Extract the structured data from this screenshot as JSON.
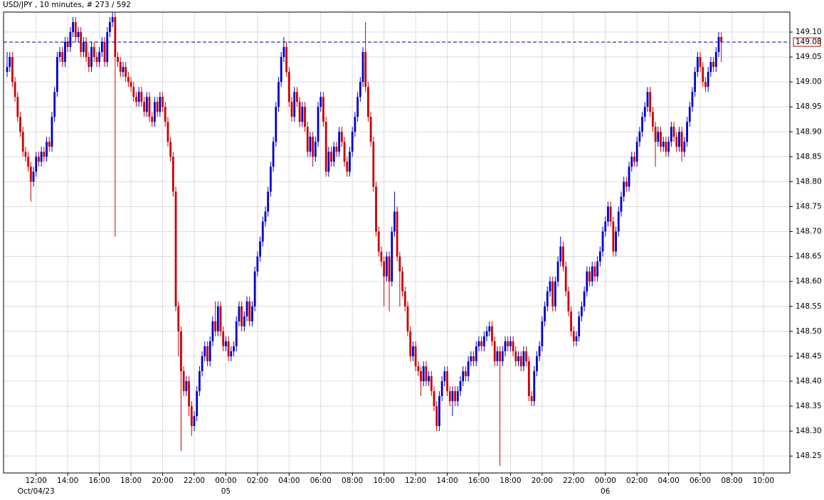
{
  "chart_data": {
    "type": "candlestick",
    "title": "USD/JPY , 10 minutes, # 273 / 592",
    "up_color": "#0000cc",
    "down_color": "#cc0000",
    "grid": true,
    "last_price": 149.08,
    "ylim": [
      148.216,
      149.14
    ],
    "yticks": [
      148.25,
      {
        "value": 148.3,
        "label": "148.30"
      },
      148.35,
      {
        "value": 148.4,
        "label": "148.40"
      },
      148.45,
      {
        "value": 148.5,
        "label": "148.50"
      },
      148.55,
      {
        "value": 148.6,
        "label": "148.60"
      },
      148.65,
      {
        "value": 148.7,
        "label": "148.70"
      },
      148.75,
      {
        "value": 148.8,
        "label": "148.80"
      },
      148.85,
      {
        "value": 148.9,
        "label": "148.90"
      },
      148.95,
      {
        "value": 149.0,
        "label": "149.00"
      },
      149.05,
      {
        "value": 149.1,
        "label": "149.10"
      }
    ],
    "xlim": [
      -1.35,
      297
    ],
    "xticks": [
      {
        "value": 11,
        "label": "12:00"
      },
      {
        "value": 23,
        "label": "14:00"
      },
      {
        "value": 35,
        "label": "16:00"
      },
      {
        "value": 47,
        "label": "18:00"
      },
      {
        "value": 59,
        "label": "20:00"
      },
      {
        "value": 71,
        "label": "22:00"
      },
      {
        "value": 83,
        "label": "00:00"
      },
      {
        "value": 95,
        "label": "02:00"
      },
      {
        "value": 107,
        "label": "04:00"
      },
      {
        "value": 119,
        "label": "06:00"
      },
      {
        "value": 131,
        "label": "08:00"
      },
      {
        "value": 143,
        "label": "10:00"
      },
      {
        "value": 155,
        "label": "12:00"
      },
      {
        "value": 167,
        "label": "14:00"
      },
      {
        "value": 179,
        "label": "16:00"
      },
      {
        "value": 191,
        "label": "18:00"
      },
      {
        "value": 203,
        "label": "20:00"
      },
      {
        "value": 215,
        "label": "22:00"
      },
      {
        "value": 227,
        "label": "00:00"
      },
      {
        "value": 239,
        "label": "02:00"
      },
      {
        "value": 251,
        "label": "04:00"
      },
      {
        "value": 263,
        "label": "06:00"
      },
      {
        "value": 275,
        "label": "08:00"
      },
      {
        "value": 287,
        "label": "10:00"
      }
    ],
    "xdate_ticks": [
      {
        "value": 11,
        "label": "Oct/04/23"
      },
      {
        "value": 83,
        "label": "05"
      },
      {
        "value": 227,
        "label": "06"
      }
    ],
    "open": [
      149.02,
      149.03,
      149.05,
      149.0,
      148.97,
      148.93,
      148.9,
      148.86,
      148.85,
      148.83,
      148.8,
      148.82,
      148.85,
      148.84,
      148.86,
      148.85,
      148.88,
      148.87,
      148.93,
      148.98,
      149.05,
      149.06,
      149.04,
      149.08,
      149.07,
      149.1,
      149.12,
      149.09,
      149.1,
      149.06,
      149.08,
      149.05,
      149.03,
      149.07,
      149.05,
      149.04,
      149.06,
      149.08,
      149.04,
      149.1,
      149.12,
      149.13,
      149.05,
      149.04,
      149.02,
      149.03,
      149.01,
      149.0,
      148.99,
      148.97,
      148.96,
      148.98,
      148.96,
      148.94,
      148.97,
      148.93,
      148.92,
      148.96,
      148.94,
      148.97,
      148.95,
      148.92,
      148.88,
      148.85,
      148.78,
      148.55,
      148.5,
      148.42,
      148.38,
      148.4,
      148.35,
      148.31,
      148.33,
      148.38,
      148.42,
      148.45,
      148.47,
      148.44,
      148.48,
      148.52,
      148.5,
      148.55,
      148.5,
      148.47,
      148.48,
      148.45,
      148.46,
      148.47,
      148.52,
      148.55,
      148.51,
      148.53,
      148.56,
      148.52,
      148.55,
      148.62,
      148.65,
      148.68,
      148.72,
      148.74,
      148.78,
      148.83,
      148.88,
      148.95,
      149.0,
      149.05,
      149.07,
      149.02,
      148.96,
      148.93,
      148.98,
      148.96,
      148.92,
      148.95,
      148.91,
      148.86,
      148.89,
      148.85,
      148.88,
      148.95,
      148.97,
      148.92,
      148.82,
      148.86,
      148.84,
      148.87,
      148.86,
      148.9,
      148.88,
      148.84,
      148.82,
      148.86,
      148.9,
      148.93,
      148.97,
      149.0,
      149.06,
      148.99,
      148.93,
      148.88,
      148.79,
      148.7,
      148.66,
      148.64,
      148.61,
      148.65,
      148.6,
      148.7,
      148.74,
      148.65,
      148.62,
      148.58,
      148.55,
      148.5,
      148.45,
      148.47,
      148.43,
      148.42,
      148.4,
      148.43,
      148.4,
      148.41,
      148.38,
      148.35,
      148.31,
      148.37,
      148.4,
      148.42,
      148.38,
      148.36,
      148.38,
      148.36,
      148.38,
      148.4,
      148.42,
      148.41,
      148.44,
      148.45,
      148.44,
      148.47,
      148.48,
      148.47,
      148.49,
      148.5,
      148.51,
      148.48,
      148.44,
      148.46,
      148.44,
      148.46,
      148.48,
      148.47,
      148.48,
      148.46,
      148.44,
      148.45,
      148.43,
      148.46,
      148.44,
      148.37,
      148.36,
      148.42,
      148.45,
      148.47,
      148.52,
      148.55,
      148.58,
      148.6,
      148.55,
      148.6,
      148.64,
      148.67,
      148.63,
      148.58,
      148.54,
      148.5,
      148.48,
      148.49,
      148.53,
      148.55,
      148.58,
      148.62,
      148.6,
      148.63,
      148.61,
      148.64,
      148.66,
      148.7,
      148.72,
      148.75,
      148.72,
      148.66,
      148.7,
      148.74,
      148.77,
      148.8,
      148.79,
      148.83,
      148.85,
      148.84,
      148.88,
      148.9,
      148.93,
      148.95,
      148.98,
      148.94,
      148.91,
      148.88,
      148.9,
      148.87,
      148.88,
      148.86,
      148.88,
      148.91,
      148.89,
      148.87,
      148.9,
      148.86,
      148.88,
      148.92,
      148.95,
      148.98,
      149.02,
      149.05,
      149.03,
      149.0,
      148.99,
      149.02,
      149.04,
      149.03,
      149.06,
      149.09
    ],
    "high": [
      149.06,
      149.06,
      149.06,
      149.01,
      148.98,
      148.94,
      148.91,
      148.87,
      148.86,
      148.84,
      148.83,
      148.86,
      148.86,
      148.87,
      148.87,
      148.89,
      148.89,
      148.94,
      148.99,
      149.06,
      149.07,
      149.07,
      149.09,
      149.09,
      149.11,
      149.13,
      149.13,
      149.11,
      149.11,
      149.09,
      149.09,
      149.06,
      149.08,
      149.08,
      149.06,
      149.07,
      149.09,
      149.09,
      149.11,
      149.13,
      149.14,
      149.14,
      149.06,
      149.05,
      149.04,
      149.04,
      149.02,
      149.01,
      149.0,
      148.98,
      148.99,
      148.99,
      148.97,
      148.98,
      148.98,
      148.94,
      148.97,
      148.97,
      148.98,
      148.98,
      148.96,
      148.93,
      148.89,
      148.86,
      148.79,
      148.56,
      148.51,
      148.43,
      148.41,
      148.41,
      148.36,
      148.34,
      148.39,
      148.43,
      148.46,
      148.48,
      148.48,
      148.49,
      148.53,
      148.56,
      148.56,
      148.56,
      148.51,
      148.49,
      148.49,
      148.47,
      148.48,
      148.53,
      148.56,
      148.56,
      148.54,
      148.57,
      148.57,
      148.56,
      148.63,
      148.66,
      148.69,
      148.73,
      148.75,
      148.79,
      148.84,
      148.89,
      148.96,
      149.01,
      149.06,
      149.09,
      149.08,
      149.03,
      148.97,
      148.99,
      148.99,
      148.97,
      148.96,
      148.96,
      148.92,
      148.9,
      148.9,
      148.89,
      148.96,
      148.98,
      148.98,
      148.93,
      148.87,
      148.87,
      148.88,
      148.88,
      148.91,
      148.91,
      148.89,
      148.85,
      148.87,
      148.91,
      148.94,
      148.98,
      149.01,
      149.07,
      149.12,
      149.0,
      148.94,
      148.89,
      148.8,
      148.71,
      148.67,
      148.65,
      148.66,
      148.66,
      148.71,
      148.78,
      148.75,
      148.66,
      148.63,
      148.59,
      148.56,
      148.51,
      148.48,
      148.48,
      148.44,
      148.43,
      148.44,
      148.44,
      148.42,
      148.42,
      148.39,
      148.36,
      148.38,
      148.41,
      148.43,
      148.43,
      148.39,
      148.39,
      148.39,
      148.39,
      148.41,
      148.43,
      148.43,
      148.45,
      148.46,
      148.46,
      148.48,
      148.49,
      148.49,
      148.5,
      148.51,
      148.52,
      148.52,
      148.49,
      148.47,
      148.47,
      148.47,
      148.49,
      148.49,
      148.49,
      148.49,
      148.47,
      148.46,
      148.46,
      148.47,
      148.47,
      148.45,
      148.38,
      148.43,
      148.46,
      148.48,
      148.53,
      148.56,
      148.59,
      148.61,
      148.61,
      148.61,
      148.65,
      148.69,
      148.68,
      148.64,
      148.59,
      148.55,
      148.51,
      148.5,
      148.54,
      148.56,
      148.59,
      148.63,
      148.63,
      148.64,
      148.64,
      148.65,
      148.67,
      148.71,
      148.73,
      148.76,
      148.76,
      148.73,
      148.71,
      148.75,
      148.78,
      148.81,
      148.81,
      148.84,
      148.86,
      148.86,
      148.89,
      148.91,
      148.94,
      148.96,
      148.99,
      148.99,
      148.95,
      148.92,
      148.91,
      148.91,
      148.89,
      148.89,
      148.89,
      148.92,
      148.92,
      148.9,
      148.91,
      148.91,
      148.89,
      148.93,
      148.96,
      148.99,
      149.03,
      149.06,
      149.06,
      149.04,
      149.01,
      149.03,
      149.05,
      149.05,
      149.07,
      149.1,
      149.1
    ],
    "low": [
      149.01,
      149.02,
      148.99,
      148.96,
      148.92,
      148.89,
      148.85,
      148.84,
      148.82,
      148.76,
      148.79,
      148.81,
      148.83,
      148.83,
      148.84,
      148.84,
      148.86,
      148.86,
      148.92,
      148.97,
      149.04,
      149.03,
      149.03,
      149.06,
      149.06,
      149.09,
      149.08,
      149.08,
      149.05,
      149.05,
      149.04,
      149.02,
      149.02,
      149.04,
      149.03,
      149.03,
      149.05,
      149.03,
      149.03,
      149.09,
      149.11,
      148.69,
      149.03,
      149.01,
      149.01,
      149.0,
      148.99,
      148.98,
      148.96,
      148.95,
      148.95,
      148.95,
      148.93,
      148.93,
      148.92,
      148.91,
      148.91,
      148.93,
      148.93,
      148.94,
      148.91,
      148.87,
      148.84,
      148.77,
      148.54,
      148.45,
      148.26,
      148.37,
      148.37,
      148.33,
      148.29,
      148.3,
      148.32,
      148.37,
      148.41,
      148.44,
      148.43,
      148.43,
      148.47,
      148.49,
      148.49,
      148.49,
      148.46,
      148.46,
      148.44,
      148.44,
      148.45,
      148.46,
      148.51,
      148.5,
      148.5,
      148.52,
      148.51,
      148.51,
      148.54,
      148.61,
      148.64,
      148.67,
      148.71,
      148.73,
      148.77,
      148.82,
      148.87,
      148.94,
      148.99,
      149.04,
      149.01,
      148.95,
      148.92,
      148.92,
      148.95,
      148.91,
      148.91,
      148.9,
      148.85,
      148.85,
      148.83,
      148.84,
      148.87,
      148.94,
      148.91,
      148.81,
      148.81,
      148.83,
      148.83,
      148.85,
      148.85,
      148.87,
      148.83,
      148.81,
      148.81,
      148.85,
      148.89,
      148.92,
      148.96,
      148.99,
      148.98,
      148.92,
      148.87,
      148.78,
      148.69,
      148.65,
      148.63,
      148.55,
      148.6,
      148.54,
      148.59,
      148.69,
      148.64,
      148.55,
      148.57,
      148.54,
      148.49,
      148.44,
      148.44,
      148.42,
      148.41,
      148.37,
      148.39,
      148.39,
      148.39,
      148.37,
      148.34,
      148.3,
      148.3,
      148.36,
      148.39,
      148.37,
      148.35,
      148.33,
      148.35,
      148.35,
      148.37,
      148.39,
      148.4,
      148.4,
      148.43,
      148.43,
      148.43,
      148.46,
      148.46,
      148.46,
      148.48,
      148.49,
      148.47,
      148.43,
      148.43,
      148.23,
      148.43,
      148.45,
      148.46,
      148.46,
      148.45,
      148.43,
      148.43,
      148.42,
      148.42,
      148.43,
      148.36,
      148.35,
      148.35,
      148.41,
      148.44,
      148.46,
      148.51,
      148.54,
      148.57,
      148.54,
      148.54,
      148.59,
      148.63,
      148.62,
      148.57,
      148.53,
      148.49,
      148.47,
      148.47,
      148.48,
      148.52,
      148.54,
      148.57,
      148.59,
      148.59,
      148.6,
      148.6,
      148.63,
      148.65,
      148.69,
      148.71,
      148.71,
      148.65,
      148.65,
      148.69,
      148.73,
      148.76,
      148.78,
      148.78,
      148.82,
      148.83,
      148.83,
      148.87,
      148.89,
      148.92,
      148.94,
      148.93,
      148.9,
      148.83,
      148.87,
      148.86,
      148.86,
      148.85,
      148.85,
      148.87,
      148.88,
      148.86,
      148.86,
      148.84,
      148.85,
      148.87,
      148.91,
      148.94,
      148.97,
      149.01,
      149.02,
      148.99,
      148.98,
      148.98,
      149.01,
      149.02,
      149.02,
      149.05,
      149.04
    ],
    "close": [
      149.03,
      149.05,
      149.0,
      148.97,
      148.93,
      148.9,
      148.86,
      148.85,
      148.83,
      148.8,
      148.82,
      148.85,
      148.84,
      148.86,
      148.85,
      148.88,
      148.87,
      148.93,
      148.98,
      149.05,
      149.06,
      149.04,
      149.08,
      149.07,
      149.1,
      149.12,
      149.09,
      149.1,
      149.06,
      149.08,
      149.05,
      149.03,
      149.07,
      149.05,
      149.04,
      149.06,
      149.08,
      149.04,
      149.1,
      149.12,
      149.13,
      149.05,
      149.04,
      149.02,
      149.03,
      149.01,
      149.0,
      148.99,
      148.97,
      148.96,
      148.98,
      148.96,
      148.94,
      148.97,
      148.93,
      148.92,
      148.96,
      148.94,
      148.97,
      148.95,
      148.92,
      148.88,
      148.85,
      148.78,
      148.55,
      148.5,
      148.42,
      148.38,
      148.4,
      148.35,
      148.31,
      148.33,
      148.38,
      148.42,
      148.45,
      148.47,
      148.44,
      148.48,
      148.52,
      148.5,
      148.55,
      148.5,
      148.47,
      148.48,
      148.45,
      148.46,
      148.47,
      148.52,
      148.55,
      148.51,
      148.53,
      148.56,
      148.52,
      148.55,
      148.62,
      148.65,
      148.68,
      148.72,
      148.74,
      148.78,
      148.83,
      148.88,
      148.95,
      149.0,
      149.05,
      149.07,
      149.02,
      148.96,
      148.93,
      148.98,
      148.96,
      148.92,
      148.95,
      148.91,
      148.86,
      148.89,
      148.85,
      148.88,
      148.95,
      148.97,
      148.92,
      148.82,
      148.86,
      148.84,
      148.87,
      148.86,
      148.9,
      148.88,
      148.84,
      148.82,
      148.86,
      148.9,
      148.93,
      148.97,
      149.0,
      149.06,
      148.99,
      148.93,
      148.88,
      148.79,
      148.7,
      148.66,
      148.64,
      148.61,
      148.65,
      148.6,
      148.7,
      148.74,
      148.65,
      148.62,
      148.58,
      148.55,
      148.5,
      148.45,
      148.47,
      148.43,
      148.42,
      148.4,
      148.43,
      148.4,
      148.41,
      148.38,
      148.35,
      148.31,
      148.37,
      148.4,
      148.42,
      148.38,
      148.36,
      148.38,
      148.36,
      148.38,
      148.4,
      148.42,
      148.41,
      148.44,
      148.45,
      148.44,
      148.47,
      148.48,
      148.47,
      148.49,
      148.5,
      148.51,
      148.48,
      148.44,
      148.46,
      148.44,
      148.46,
      148.48,
      148.47,
      148.48,
      148.46,
      148.44,
      148.45,
      148.43,
      148.46,
      148.44,
      148.37,
      148.36,
      148.42,
      148.45,
      148.47,
      148.52,
      148.55,
      148.58,
      148.6,
      148.55,
      148.6,
      148.64,
      148.67,
      148.63,
      148.58,
      148.54,
      148.5,
      148.48,
      148.49,
      148.53,
      148.55,
      148.58,
      148.62,
      148.6,
      148.63,
      148.61,
      148.64,
      148.66,
      148.7,
      148.72,
      148.75,
      148.72,
      148.66,
      148.7,
      148.74,
      148.77,
      148.8,
      148.79,
      148.83,
      148.85,
      148.84,
      148.88,
      148.9,
      148.93,
      148.95,
      148.98,
      148.94,
      148.91,
      148.88,
      148.9,
      148.87,
      148.88,
      148.86,
      148.88,
      148.91,
      148.89,
      148.87,
      148.9,
      148.86,
      148.88,
      148.92,
      148.95,
      148.98,
      149.02,
      149.05,
      149.03,
      149.0,
      148.99,
      149.02,
      149.04,
      149.03,
      149.06,
      149.09,
      149.08
    ]
  }
}
